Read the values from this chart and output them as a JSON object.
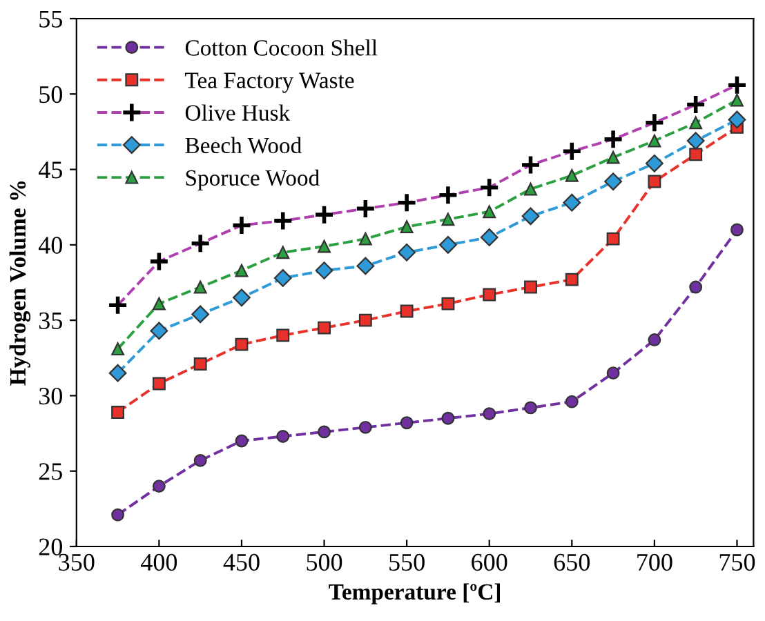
{
  "chart_data": {
    "type": "line",
    "xlabel": "Temperature [ºC]",
    "ylabel": "Hydrogen Volume %",
    "x": [
      375,
      400,
      425,
      450,
      475,
      500,
      525,
      550,
      575,
      600,
      625,
      650,
      675,
      700,
      725,
      750
    ],
    "series": [
      {
        "name": "Cotton Cocoon Shell",
        "color": "#7030a0",
        "marker": "circle",
        "values": [
          22.1,
          24,
          25.7,
          27,
          27.3,
          27.6,
          27.9,
          28.2,
          28.5,
          28.8,
          29.2,
          29.6,
          31.5,
          33.7,
          37.2,
          41
        ]
      },
      {
        "name": "Tea Factory Waste",
        "color": "#e8312a",
        "marker": "square",
        "values": [
          28.9,
          30.8,
          32.1,
          33.4,
          34,
          34.5,
          35,
          35.6,
          36.1,
          36.7,
          37.2,
          37.7,
          40.4,
          44.2,
          46,
          47.8
        ]
      },
      {
        "name": "Olive Husk",
        "color": "#b040b0",
        "marker": "cross",
        "values": [
          36,
          38.9,
          40.1,
          41.3,
          41.6,
          42,
          42.4,
          42.8,
          43.3,
          43.8,
          45.3,
          46.2,
          47,
          48.1,
          49.3,
          50.6
        ]
      },
      {
        "name": "Beech Wood",
        "color": "#2e9ad8",
        "marker": "diamond",
        "values": [
          31.5,
          34.3,
          35.4,
          36.5,
          37.8,
          38.3,
          38.6,
          39.5,
          40,
          40.5,
          41.9,
          42.8,
          44.2,
          45.4,
          46.9,
          48.3
        ]
      },
      {
        "name": "Sporuce Wood",
        "color": "#2ca040",
        "marker": "triangle",
        "values": [
          33.1,
          36.1,
          37.2,
          38.3,
          39.5,
          39.9,
          40.4,
          41.2,
          41.7,
          42.2,
          43.7,
          44.6,
          45.8,
          46.9,
          48.1,
          49.6
        ]
      }
    ],
    "xlim": [
      350,
      760
    ],
    "xticks": [
      350,
      400,
      450,
      500,
      550,
      600,
      650,
      700,
      750
    ],
    "ylim": [
      20,
      55
    ],
    "yticks": [
      20,
      25,
      30,
      35,
      40,
      45,
      50,
      55
    ],
    "grid": false,
    "legend": "top left",
    "line_style": "dashed"
  }
}
